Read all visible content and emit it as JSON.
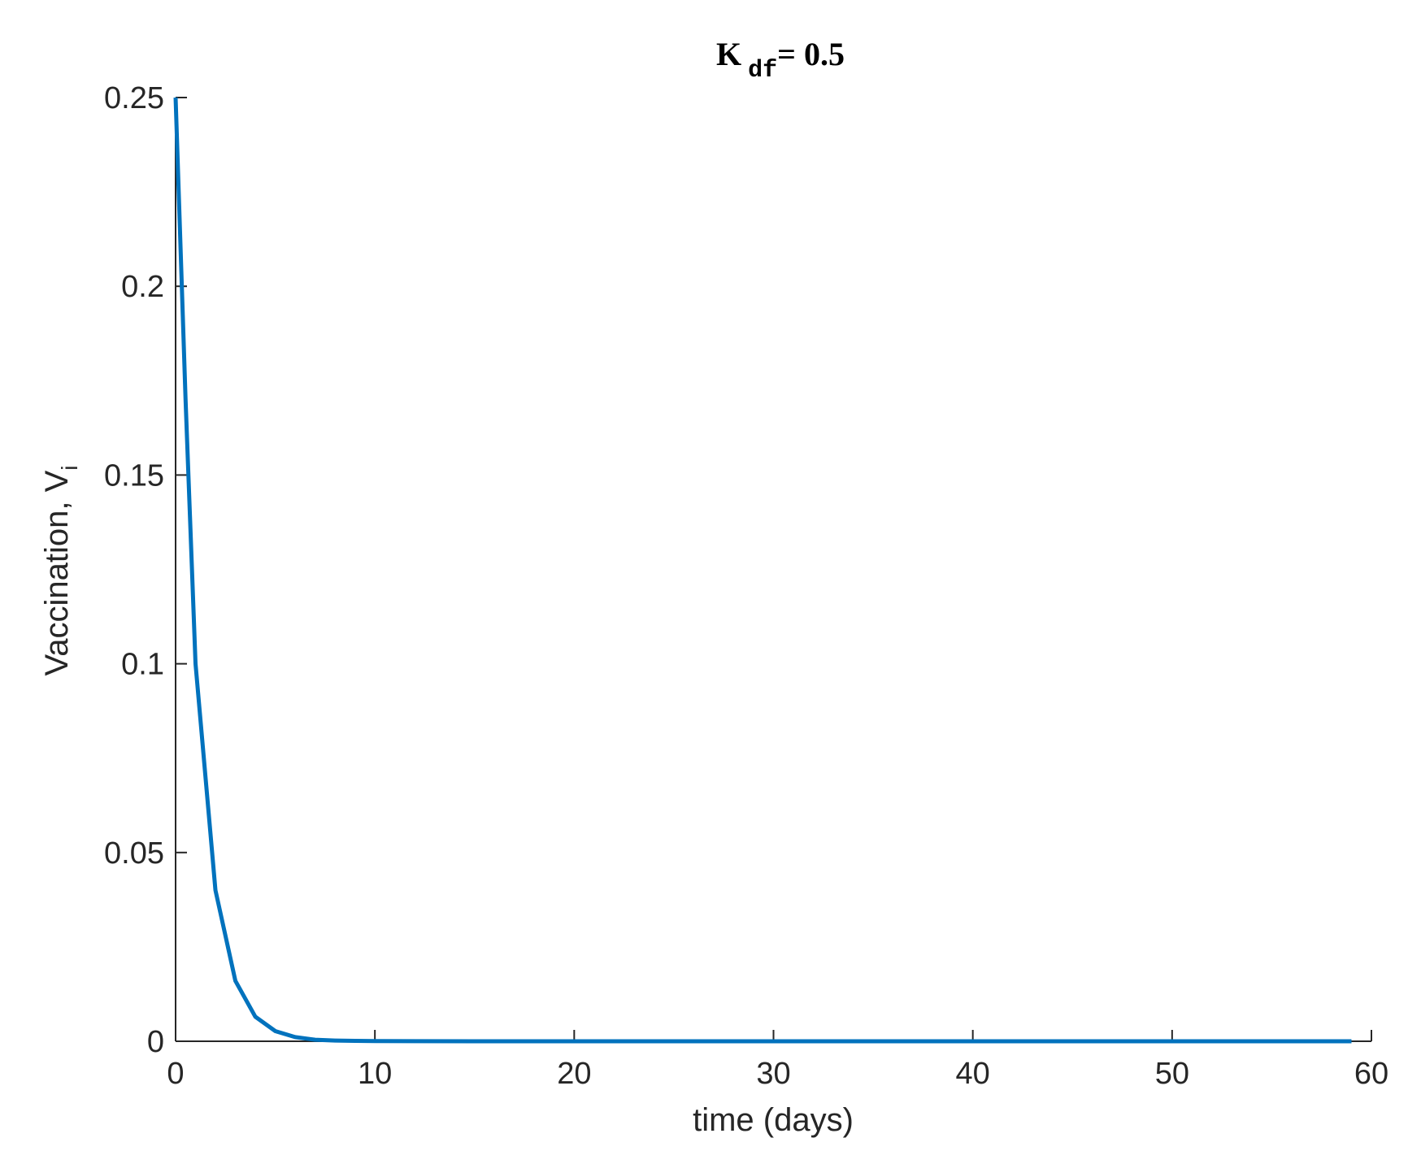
{
  "chart_data": {
    "type": "line",
    "title": {
      "main": "K",
      "subscript": "df",
      "suffix": "= 0.5"
    },
    "xlabel": "time (days)",
    "ylabel": {
      "main": "Vaccination, V",
      "subscript": "i"
    },
    "xlim": [
      0,
      60
    ],
    "ylim": [
      0,
      0.25
    ],
    "xticks": [
      0,
      10,
      20,
      30,
      40,
      50,
      60
    ],
    "xtick_labels": [
      "0",
      "10",
      "20",
      "30",
      "40",
      "50",
      "60"
    ],
    "yticks": [
      0,
      0.05,
      0.1,
      0.15,
      0.2,
      0.25
    ],
    "ytick_labels": [
      "0",
      "0.05",
      "0.1",
      "0.15",
      "0.2",
      "0.25"
    ],
    "grid": false,
    "series": [
      {
        "color": "#0072BD",
        "x": [
          0,
          0.5,
          1,
          2,
          3,
          4,
          5,
          6,
          7,
          8,
          9,
          10,
          15,
          20,
          30,
          40,
          50,
          59
        ],
        "y": [
          0.25,
          0.17,
          0.1,
          0.04,
          0.016,
          0.0065,
          0.0027,
          0.0011,
          0.0004,
          0.0002,
          0.0001,
          4e-05,
          0,
          0,
          0,
          0,
          0,
          0
        ]
      }
    ]
  }
}
